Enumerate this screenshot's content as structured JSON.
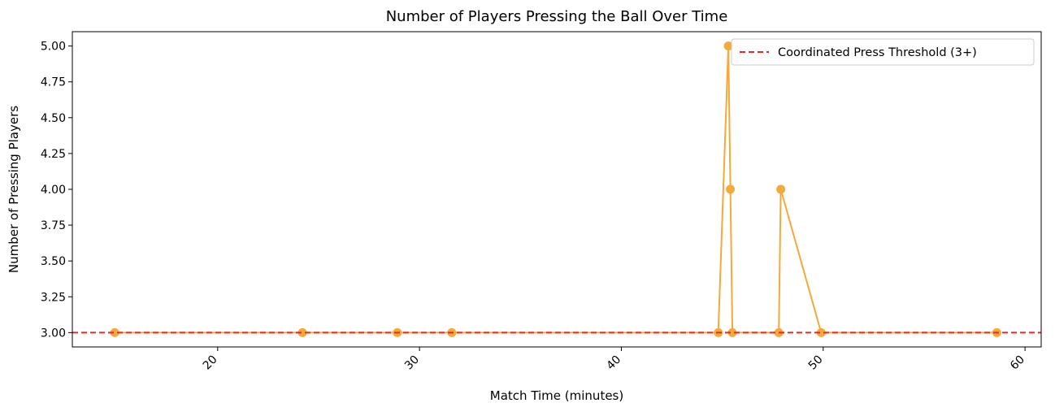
{
  "chart_data": {
    "type": "line",
    "title": "Number of Players Pressing the Ball Over Time",
    "xlabel": "Match Time (minutes)",
    "ylabel": "Number of Pressing Players",
    "xlim": [
      12.8,
      60.8
    ],
    "ylim": [
      2.9,
      5.1
    ],
    "xticks": [
      20,
      30,
      40,
      50,
      60
    ],
    "yticks": [
      3.0,
      3.25,
      3.5,
      3.75,
      4.0,
      4.25,
      4.5,
      4.75,
      5.0
    ],
    "ytick_labels": [
      "3.00",
      "3.25",
      "3.50",
      "3.75",
      "4.00",
      "4.25",
      "4.50",
      "4.75",
      "5.00"
    ],
    "xtick_rotation": 45,
    "grid": false,
    "series": [
      {
        "color": "#f4a93a",
        "marker": "circle",
        "x": [
          14.9,
          24.2,
          28.9,
          31.6,
          44.8,
          45.3,
          45.4,
          45.5,
          47.8,
          47.9,
          49.9,
          58.6
        ],
        "y": [
          3,
          3,
          3,
          3,
          3,
          5,
          4,
          3,
          3,
          4,
          3,
          3
        ]
      }
    ],
    "threshold": {
      "name": "Coordinated Press Threshold (3+)",
      "y": 3.0,
      "color": "#e8262a",
      "style": "dashed"
    },
    "legend": {
      "placement": "top-right",
      "entries": [
        "Coordinated Press Threshold (3+)"
      ]
    }
  }
}
